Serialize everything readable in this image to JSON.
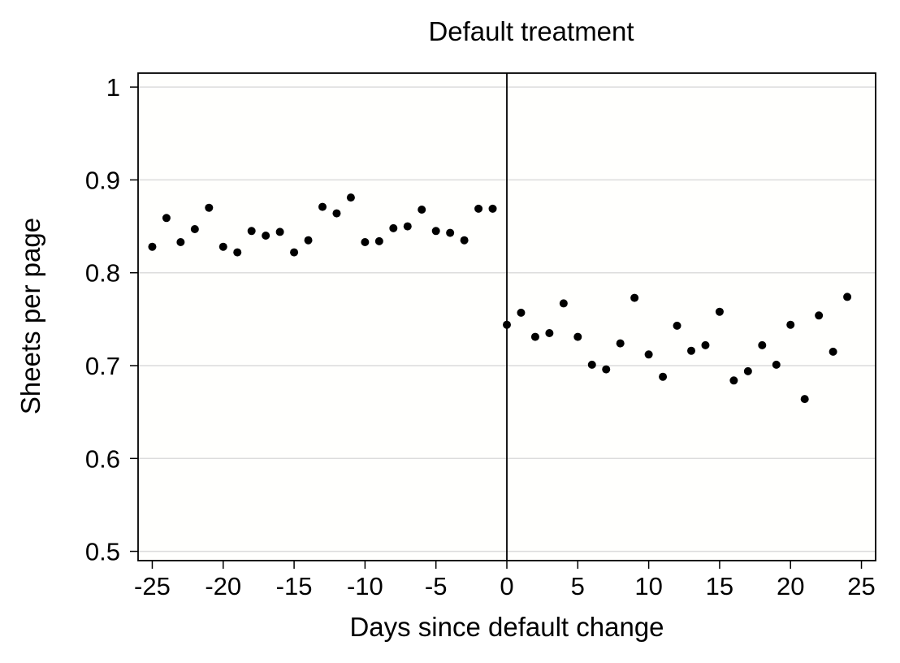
{
  "chart_data": {
    "type": "scatter",
    "title": "Default treatment",
    "xlabel": "Days since default change",
    "ylabel": "Sheets per page",
    "xlim": [
      -26,
      26
    ],
    "ylim": [
      0.49,
      1.015
    ],
    "xticks": [
      -25,
      -20,
      -15,
      -10,
      -5,
      0,
      5,
      10,
      15,
      20,
      25
    ],
    "xtick_labels": [
      "-25",
      "-20",
      "-15",
      "-10",
      "-5",
      "0",
      "5",
      "10",
      "15",
      "20",
      "25"
    ],
    "yticks": [
      0.5,
      0.6,
      0.7,
      0.8,
      0.9,
      1.0
    ],
    "ytick_labels": [
      "0.5",
      "0.6",
      "0.7",
      "0.8",
      "0.9",
      "1"
    ],
    "grid": "horizontal",
    "vertical_line_at": 0,
    "plot_background": "#fffffd",
    "marker_color": "#000000",
    "gridline_color": "#dcdcdc",
    "series": [
      {
        "points": [
          {
            "x": -25,
            "y": 0.828
          },
          {
            "x": -24,
            "y": 0.859
          },
          {
            "x": -23,
            "y": 0.833
          },
          {
            "x": -22,
            "y": 0.847
          },
          {
            "x": -21,
            "y": 0.87
          },
          {
            "x": -20,
            "y": 0.828
          },
          {
            "x": -19,
            "y": 0.822
          },
          {
            "x": -18,
            "y": 0.845
          },
          {
            "x": -17,
            "y": 0.84
          },
          {
            "x": -16,
            "y": 0.844
          },
          {
            "x": -15,
            "y": 0.822
          },
          {
            "x": -14,
            "y": 0.835
          },
          {
            "x": -13,
            "y": 0.871
          },
          {
            "x": -12,
            "y": 0.864
          },
          {
            "x": -11,
            "y": 0.881
          },
          {
            "x": -10,
            "y": 0.833
          },
          {
            "x": -9,
            "y": 0.834
          },
          {
            "x": -8,
            "y": 0.848
          },
          {
            "x": -7,
            "y": 0.85
          },
          {
            "x": -6,
            "y": 0.868
          },
          {
            "x": -5,
            "y": 0.845
          },
          {
            "x": -4,
            "y": 0.843
          },
          {
            "x": -3,
            "y": 0.835
          },
          {
            "x": -2,
            "y": 0.869
          },
          {
            "x": -1,
            "y": 0.869
          },
          {
            "x": 0,
            "y": 0.744
          },
          {
            "x": 1,
            "y": 0.757
          },
          {
            "x": 2,
            "y": 0.731
          },
          {
            "x": 3,
            "y": 0.735
          },
          {
            "x": 4,
            "y": 0.767
          },
          {
            "x": 5,
            "y": 0.731
          },
          {
            "x": 6,
            "y": 0.701
          },
          {
            "x": 7,
            "y": 0.696
          },
          {
            "x": 8,
            "y": 0.724
          },
          {
            "x": 9,
            "y": 0.773
          },
          {
            "x": 10,
            "y": 0.712
          },
          {
            "x": 11,
            "y": 0.688
          },
          {
            "x": 12,
            "y": 0.743
          },
          {
            "x": 13,
            "y": 0.716
          },
          {
            "x": 14,
            "y": 0.722
          },
          {
            "x": 15,
            "y": 0.758
          },
          {
            "x": 16,
            "y": 0.684
          },
          {
            "x": 17,
            "y": 0.694
          },
          {
            "x": 18,
            "y": 0.722
          },
          {
            "x": 19,
            "y": 0.701
          },
          {
            "x": 20,
            "y": 0.744
          },
          {
            "x": 21,
            "y": 0.664
          },
          {
            "x": 22,
            "y": 0.754
          },
          {
            "x": 23,
            "y": 0.715
          },
          {
            "x": 24,
            "y": 0.774
          }
        ]
      }
    ]
  }
}
